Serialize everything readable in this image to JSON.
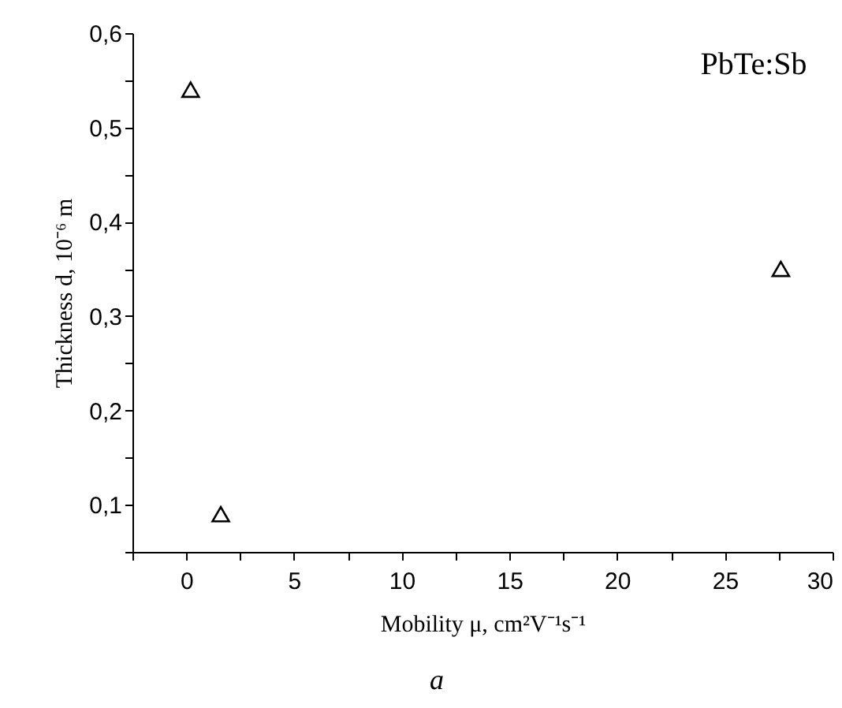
{
  "chart_data": {
    "type": "scatter",
    "xlabel": "Mobility μ, cm²V⁻¹s⁻¹",
    "ylabel": "Thickness d, 10⁻⁶ m",
    "x": [
      0.2,
      1.6,
      27.6
    ],
    "series": [
      {
        "color": "#000000",
        "values": [
          0.54,
          0.09,
          0.35
        ]
      }
    ],
    "marker": "triangle",
    "grid": false,
    "legend": false,
    "xlim": [
      -2.5,
      30
    ],
    "xticks": [
      {
        "value": -2.5,
        "label": null
      },
      0,
      {
        "value": 2.5,
        "label": null
      },
      5,
      {
        "value": 7.5,
        "label": null
      },
      10,
      {
        "value": 12.5,
        "label": null
      },
      15,
      {
        "value": 17.5,
        "label": null
      },
      20,
      {
        "value": 22.5,
        "label": null
      },
      25,
      {
        "value": 27.5,
        "label": null
      },
      30
    ],
    "ylim": [
      0.05,
      0.6
    ],
    "yticks": [
      {
        "value": 0.05,
        "label": null
      },
      {
        "value": 0.1,
        "label": "0,1"
      },
      {
        "value": 0.15,
        "label": null
      },
      {
        "value": 0.2,
        "label": "0,2"
      },
      {
        "value": 0.25,
        "label": null
      },
      {
        "value": 0.3,
        "label": "0,3"
      },
      {
        "value": 0.35,
        "label": null
      },
      {
        "value": 0.4,
        "label": "0,4"
      },
      {
        "value": 0.45,
        "label": null
      },
      {
        "value": 0.5,
        "label": "0,5"
      },
      {
        "value": 0.55,
        "label": null
      },
      {
        "value": 0.6,
        "label": "0,6"
      }
    ],
    "annotations": [
      "PbTe:Sb",
      "a"
    ]
  }
}
